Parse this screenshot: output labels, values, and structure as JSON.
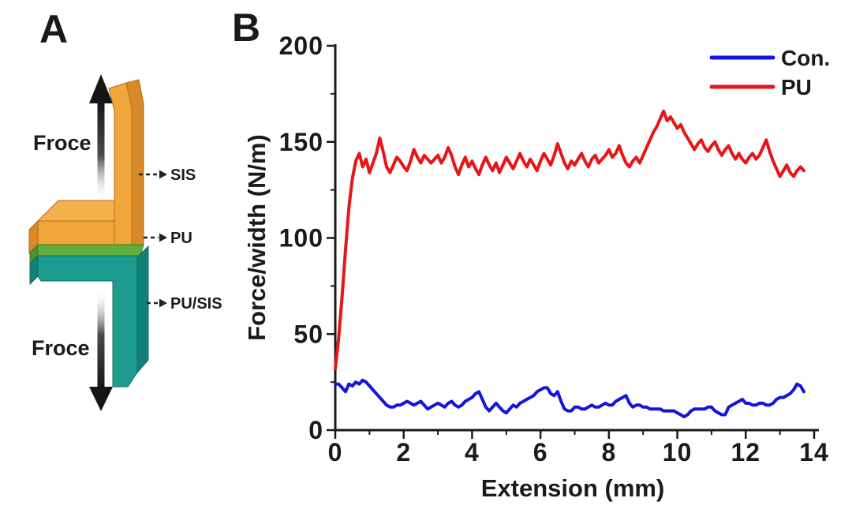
{
  "figure": {
    "panel_a": {
      "label": "A",
      "force_label_top": "Froce",
      "force_label_bottom": "Froce",
      "layer_labels": {
        "top_strip": "SIS",
        "middle_layer": "PU",
        "bottom_strip": "PU/SIS"
      },
      "colors": {
        "sis_top": "#f4b04a",
        "sis_front": "#f0a63a",
        "sis_side": "#d9882a",
        "sis_stroke": "#b06f1d",
        "pu_front": "#62ae3e",
        "pu_side": "#4c9130",
        "pu_stroke": "#3f7a28",
        "pusis_front": "#1b9c8e",
        "pusis_side": "#128077",
        "pusis_stroke": "#0d6b63",
        "arrow": "#161616",
        "leader": "#222222"
      }
    },
    "panel_b": {
      "label": "B"
    }
  },
  "chart_data": {
    "type": "line",
    "title": "",
    "xlabel": "Extension (mm)",
    "ylabel": "Force/width (N/m)",
    "xlim": [
      0,
      14
    ],
    "ylim": [
      0,
      200
    ],
    "x_ticks": [
      0,
      2,
      4,
      6,
      8,
      10,
      12,
      14
    ],
    "y_ticks": [
      0,
      50,
      100,
      150,
      200
    ],
    "x_minor_ticks": [
      1,
      3,
      5,
      7,
      9,
      11,
      13
    ],
    "y_minor_ticks": [
      25,
      75,
      125,
      175
    ],
    "grid": false,
    "legend_position": "top-right",
    "axis_color": "#1a1a1a",
    "x": [
      0,
      0.1,
      0.2,
      0.3,
      0.4,
      0.5,
      0.6,
      0.7,
      0.8,
      0.9,
      1.0,
      1.1,
      1.2,
      1.3,
      1.4,
      1.5,
      1.6,
      1.7,
      1.8,
      1.9,
      2.0,
      2.1,
      2.2,
      2.3,
      2.4,
      2.5,
      2.6,
      2.7,
      2.8,
      2.9,
      3.0,
      3.1,
      3.2,
      3.3,
      3.4,
      3.5,
      3.6,
      3.7,
      3.8,
      3.9,
      4.0,
      4.1,
      4.2,
      4.3,
      4.4,
      4.5,
      4.6,
      4.7,
      4.8,
      4.9,
      5.0,
      5.1,
      5.2,
      5.3,
      5.4,
      5.5,
      5.6,
      5.7,
      5.8,
      5.9,
      6.0,
      6.1,
      6.2,
      6.3,
      6.4,
      6.5,
      6.6,
      6.7,
      6.8,
      6.9,
      7.0,
      7.1,
      7.2,
      7.3,
      7.4,
      7.5,
      7.6,
      7.7,
      7.8,
      7.9,
      8.0,
      8.1,
      8.2,
      8.3,
      8.4,
      8.5,
      8.6,
      8.7,
      8.8,
      8.9,
      9.0,
      9.1,
      9.2,
      9.3,
      9.4,
      9.5,
      9.6,
      9.7,
      9.8,
      9.9,
      10.0,
      10.1,
      10.2,
      10.3,
      10.4,
      10.5,
      10.6,
      10.7,
      10.8,
      10.9,
      11.0,
      11.1,
      11.2,
      11.3,
      11.4,
      11.5,
      11.6,
      11.7,
      11.8,
      11.9,
      12.0,
      12.1,
      12.2,
      12.3,
      12.4,
      12.5,
      12.6,
      12.7,
      12.8,
      12.9,
      13.0,
      13.1,
      13.2,
      13.3,
      13.4,
      13.5,
      13.6,
      13.7
    ],
    "series": [
      {
        "name": "Con.",
        "color": "#1414dc",
        "values": [
          24,
          24,
          22,
          20,
          24,
          23,
          25,
          24,
          26,
          25,
          23,
          21,
          19,
          17,
          15,
          13,
          12,
          12,
          13,
          13,
          14,
          15,
          14,
          13,
          14,
          15,
          13,
          11,
          12,
          13,
          14,
          13,
          12,
          14,
          15,
          13,
          12,
          13,
          15,
          16,
          17,
          19,
          20,
          16,
          12,
          10,
          12,
          14,
          12,
          10,
          9,
          11,
          13,
          12,
          14,
          15,
          16,
          17,
          18,
          20,
          21,
          22,
          22,
          19,
          18,
          20,
          15,
          11,
          10,
          10,
          12,
          12,
          11,
          11,
          12,
          13,
          12,
          12,
          13,
          14,
          13,
          13,
          15,
          16,
          17,
          18,
          14,
          12,
          13,
          13,
          12,
          12,
          11,
          11,
          11,
          11,
          10,
          10,
          10,
          10,
          9,
          8,
          7,
          8,
          10,
          11,
          11,
          11,
          11,
          12,
          12,
          10,
          9,
          8,
          8,
          12,
          13,
          14,
          15,
          16,
          14,
          14,
          13,
          13,
          14,
          14,
          13,
          13,
          14,
          16,
          17,
          17,
          18,
          19,
          21,
          24,
          23,
          20
        ]
      },
      {
        "name": "PU",
        "color": "#e81416",
        "values": [
          32,
          48,
          70,
          94,
          116,
          131,
          140,
          144,
          137,
          141,
          134,
          139,
          144,
          152,
          145,
          137,
          134,
          138,
          142,
          140,
          137,
          135,
          140,
          146,
          142,
          139,
          143,
          141,
          139,
          141,
          143,
          139,
          142,
          147,
          143,
          137,
          133,
          138,
          142,
          137,
          140,
          136,
          133,
          138,
          142,
          138,
          135,
          139,
          134,
          138,
          142,
          139,
          136,
          140,
          144,
          140,
          137,
          141,
          138,
          135,
          140,
          144,
          141,
          138,
          143,
          149,
          144,
          139,
          136,
          140,
          138,
          141,
          144,
          140,
          137,
          141,
          143,
          139,
          141,
          143,
          146,
          142,
          144,
          148,
          143,
          139,
          137,
          140,
          142,
          139,
          143,
          147,
          151,
          155,
          158,
          162,
          166,
          161,
          163,
          160,
          157,
          159,
          155,
          152,
          149,
          146,
          149,
          151,
          147,
          145,
          148,
          150,
          146,
          143,
          146,
          148,
          144,
          141,
          144,
          141,
          139,
          142,
          144,
          141,
          143,
          147,
          151,
          145,
          140,
          136,
          132,
          135,
          138,
          134,
          132,
          135,
          137,
          135
        ]
      }
    ]
  }
}
